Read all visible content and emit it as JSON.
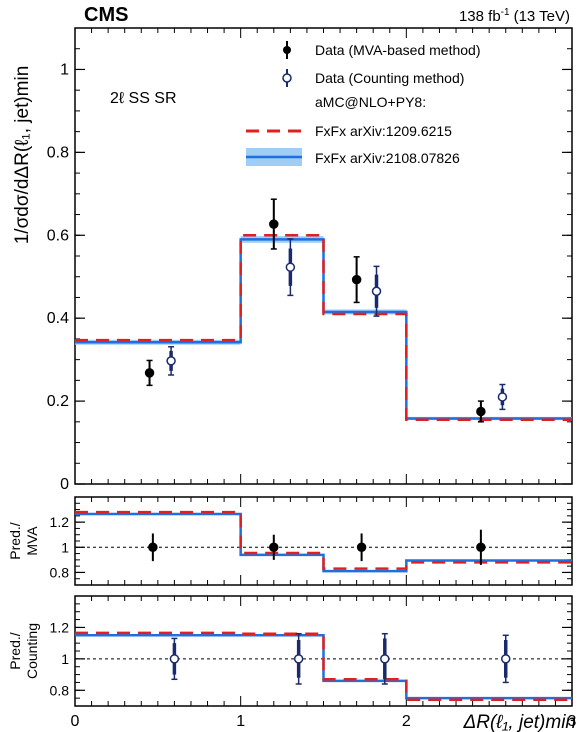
{
  "header": {
    "experiment": "CMS",
    "luminosity": "138 fb",
    "luminosity_sup": "-1",
    "energy": "(13 TeV)"
  },
  "region_label": "2ℓ SS SR",
  "legend": {
    "data_mva": "Data (MVA-based method)",
    "data_counting": "Data (Counting method)",
    "generator": "aMC@NLO+PY8:",
    "fxfx_old": "FxFx arXiv:1209.6215",
    "fxfx_new": "FxFx arXiv:2108.07826"
  },
  "colors": {
    "data_mva": "#000000",
    "data_counting_edge": "#1a2a6c",
    "fxfx_old": "#e02020",
    "fxfx_new": "#1f6fdf",
    "fxfx_new_band": "#9fcdf5"
  },
  "chart_data": [
    {
      "type": "line",
      "panel": "main",
      "ylabel": "1/σdσ/dΔR(ℓ1, jet)min",
      "ylim": [
        0,
        1.1
      ],
      "yticks": [
        "0",
        "0.2",
        "0.4",
        "0.6",
        "0.8",
        "1"
      ],
      "xlim": [
        0,
        3
      ],
      "bin_edges": [
        0,
        1,
        1.5,
        2,
        3
      ],
      "series": [
        {
          "name": "FxFx arXiv:1209.6215",
          "values": [
            0.347,
            0.6,
            0.41,
            0.155
          ]
        },
        {
          "name": "FxFx arXiv:2108.07826",
          "values": [
            0.342,
            0.59,
            0.415,
            0.158
          ],
          "band": [
            0.006,
            0.008,
            0.006,
            0.004
          ]
        },
        {
          "name": "Data (MVA-based method)",
          "x": [
            0.45,
            1.2,
            1.7,
            2.45
          ],
          "y": [
            0.268,
            0.627,
            0.493,
            0.175
          ],
          "err": [
            0.03,
            0.06,
            0.055,
            0.025
          ],
          "err_outer": [
            0.03,
            0.06,
            0.055,
            0.025
          ]
        },
        {
          "name": "Data (Counting method)",
          "x": [
            0.58,
            1.3,
            1.82,
            2.58
          ],
          "y": [
            0.297,
            0.523,
            0.465,
            0.21
          ],
          "err": [
            0.024,
            0.045,
            0.04,
            0.02
          ],
          "err_outer": [
            0.034,
            0.068,
            0.06,
            0.03
          ]
        }
      ]
    },
    {
      "type": "line",
      "panel": "ratio_mva",
      "ylabel": "Pred./ MVA",
      "ylabel_lines": [
        "Pred./",
        "MVA"
      ],
      "ylim": [
        0.7,
        1.4
      ],
      "yticks": [
        "0.8",
        "1",
        "1.2"
      ],
      "reference": 1,
      "bin_edges": [
        0,
        1,
        1.5,
        2,
        3
      ],
      "series": [
        {
          "name": "FxFx arXiv:1209.6215",
          "values": [
            1.28,
            0.955,
            0.83,
            0.88
          ]
        },
        {
          "name": "FxFx arXiv:2108.07826",
          "values": [
            1.265,
            0.94,
            0.81,
            0.895
          ]
        },
        {
          "name": "Data (MVA-based method)",
          "x": [
            0.47,
            1.2,
            1.73,
            2.45
          ],
          "y": [
            1.0,
            1.0,
            1.0,
            1.0
          ],
          "err": [
            0.11,
            0.1,
            0.11,
            0.14
          ]
        }
      ]
    },
    {
      "type": "line",
      "panel": "ratio_counting",
      "ylabel": "Pred./ Counting",
      "ylabel_lines": [
        "Pred./",
        "Counting"
      ],
      "ylim": [
        0.7,
        1.4
      ],
      "yticks": [
        "0.8",
        "1",
        "1.2"
      ],
      "reference": 1,
      "bin_edges": [
        0,
        1,
        1.5,
        2,
        3
      ],
      "xlabel": "ΔR(ℓ1, jet)min",
      "xticks": [
        "0",
        "1",
        "2",
        "3"
      ],
      "series": [
        {
          "name": "FxFx arXiv:1209.6215",
          "values": [
            1.165,
            1.16,
            0.87,
            0.74
          ]
        },
        {
          "name": "FxFx arXiv:2108.07826",
          "values": [
            1.15,
            1.15,
            0.86,
            0.75
          ]
        },
        {
          "name": "Data (Counting method)",
          "x": [
            0.6,
            1.35,
            1.87,
            2.6
          ],
          "y": [
            1.0,
            1.0,
            1.0,
            1.0
          ],
          "err": [
            0.1,
            0.12,
            0.13,
            0.12
          ],
          "err_outer": [
            0.13,
            0.16,
            0.16,
            0.15
          ]
        }
      ]
    }
  ]
}
